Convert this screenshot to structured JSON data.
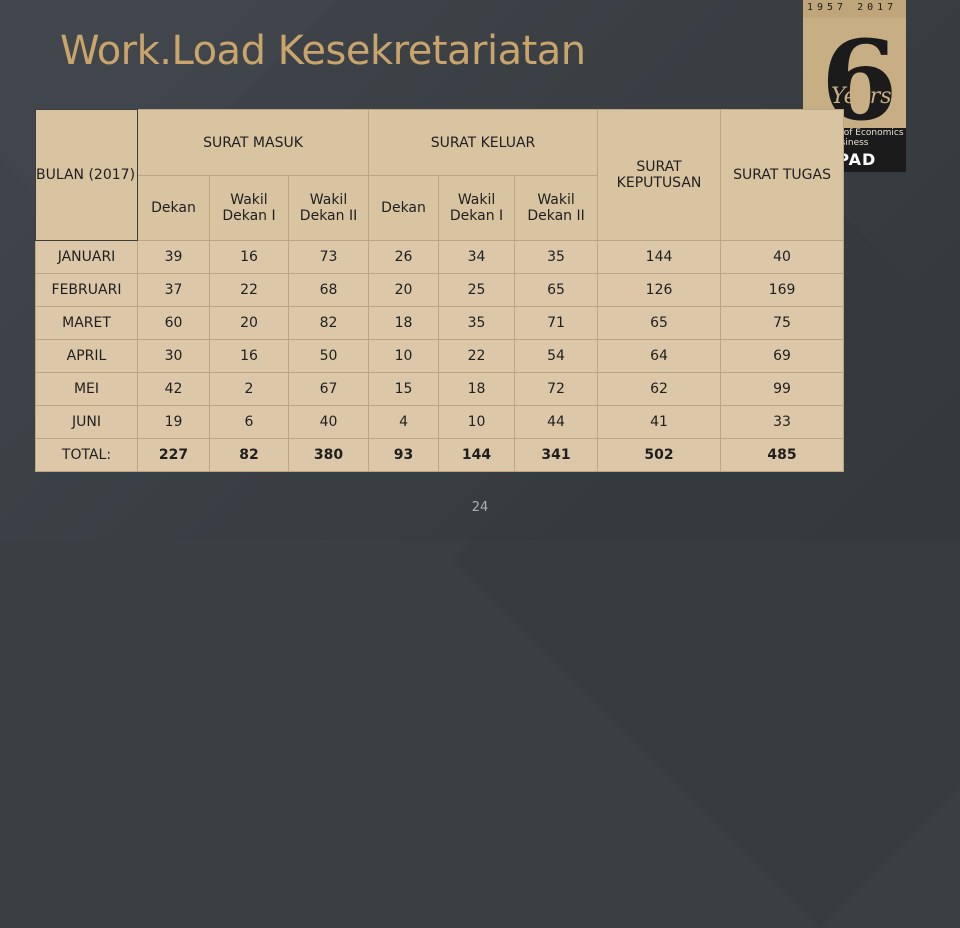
{
  "slide": {
    "title": "Work.Load Kesekretariatan",
    "page_number": "24"
  },
  "logo": {
    "years_range": "1957 2017",
    "big_numeral": "6",
    "years_word": "Years",
    "faculty": "Faculty of Economics and Business",
    "university": "UNPAD"
  },
  "table": {
    "header": {
      "bulan": "BULAN (2017)",
      "surat_masuk": "SURAT MASUK",
      "surat_keluar": "SURAT KELUAR",
      "surat_keputusan": "SURAT KEPUTUSAN",
      "surat_tugas": "SURAT TUGAS",
      "sub": [
        "Dekan",
        "Wakil Dekan I",
        "Wakil Dekan II",
        "Dekan",
        "Wakil Dekan I",
        "Wakil Dekan II"
      ]
    },
    "rows": [
      {
        "label": "JANUARI",
        "values": [
          "39",
          "16",
          "73",
          "26",
          "34",
          "35",
          "144",
          "40"
        ]
      },
      {
        "label": "FEBRUARI",
        "values": [
          "37",
          "22",
          "68",
          "20",
          "25",
          "65",
          "126",
          "169"
        ]
      },
      {
        "label": "MARET",
        "values": [
          "60",
          "20",
          "82",
          "18",
          "35",
          "71",
          "65",
          "75"
        ]
      },
      {
        "label": "APRIL",
        "values": [
          "30",
          "16",
          "50",
          "10",
          "22",
          "54",
          "64",
          "69"
        ]
      },
      {
        "label": "MEI",
        "values": [
          "42",
          "2",
          "67",
          "15",
          "18",
          "72",
          "62",
          "99"
        ]
      },
      {
        "label": "JUNI",
        "values": [
          "19",
          "6",
          "40",
          "4",
          "10",
          "44",
          "41",
          "33"
        ]
      },
      {
        "label": "TOTAL:",
        "values": [
          "227",
          "82",
          "380",
          "93",
          "144",
          "341",
          "502",
          "485"
        ]
      }
    ]
  }
}
